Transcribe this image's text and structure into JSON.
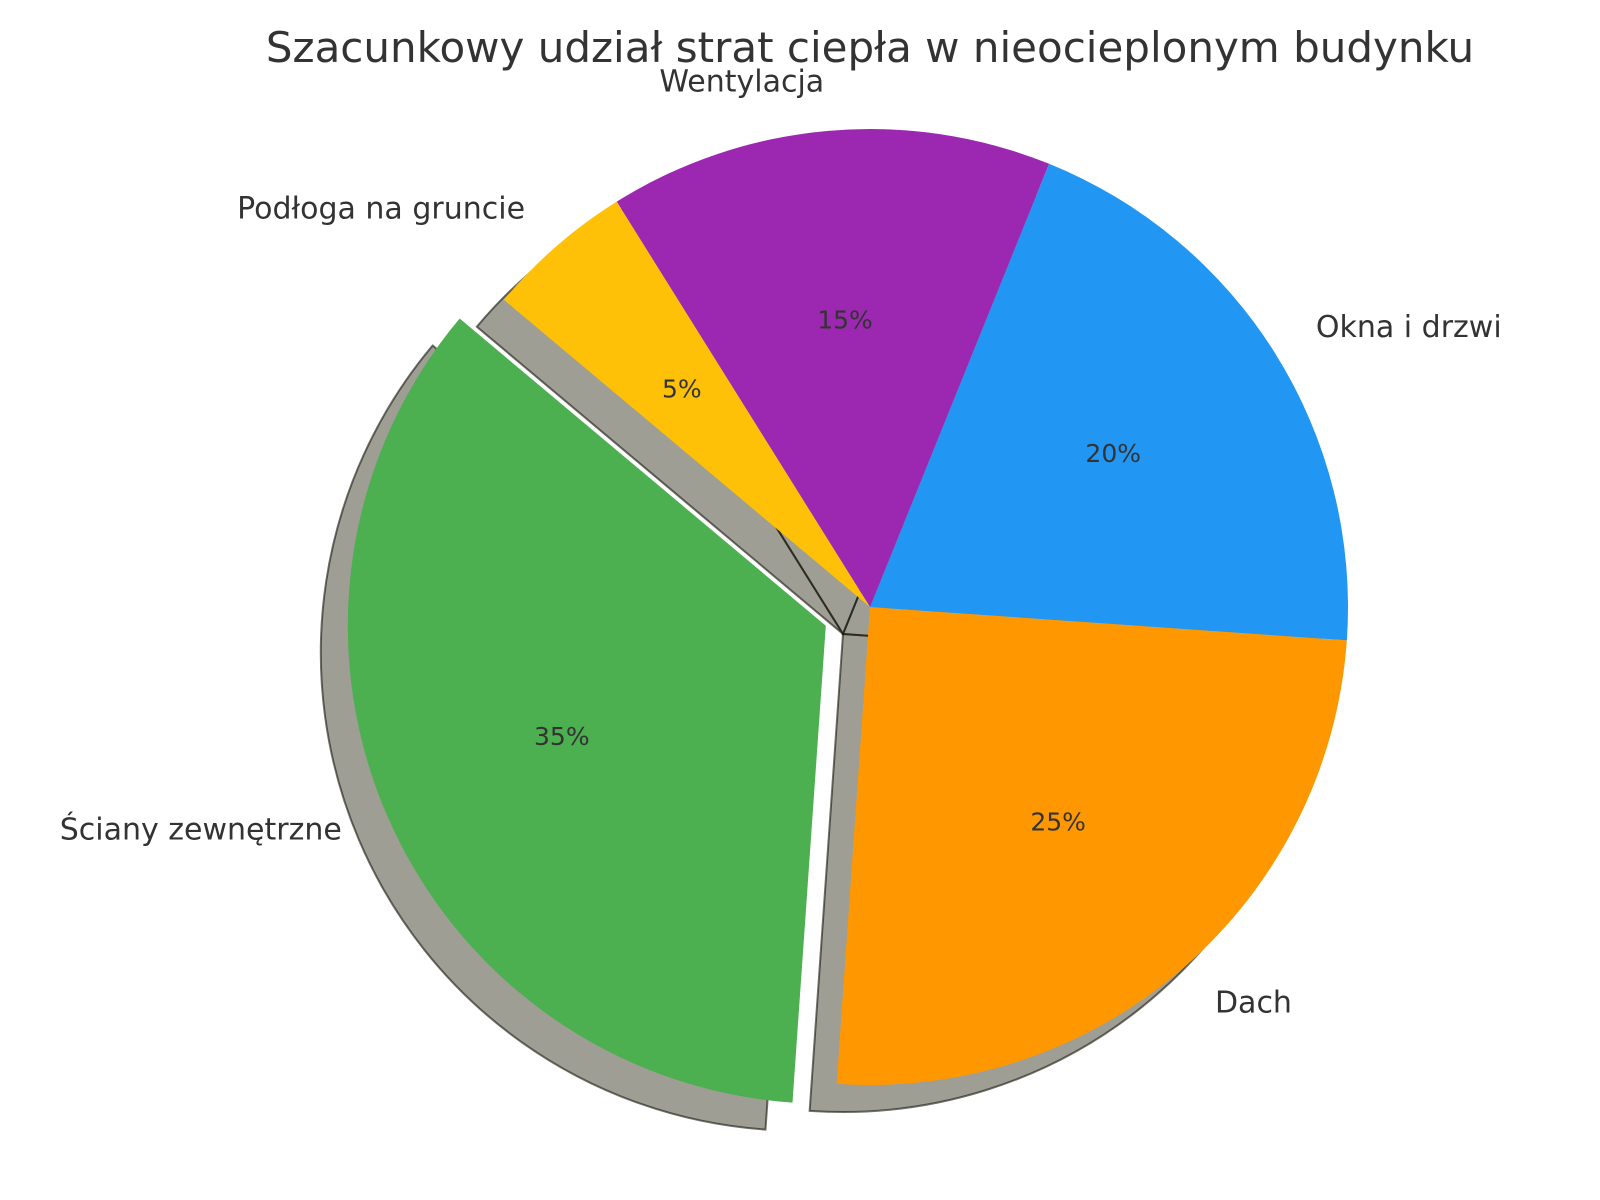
{
  "chart_data": {
    "type": "pie",
    "title": "Szacunkowy udział strat ciepła w nieocieplonym budynku",
    "slices": [
      {
        "label": "Ściany zewnętrzne",
        "value": 35,
        "pct_label": "35%",
        "color": "#4CAF50",
        "exploded": true
      },
      {
        "label": "Dach",
        "value": 25,
        "pct_label": "25%",
        "color": "#FF9800",
        "exploded": false
      },
      {
        "label": "Okna i drzwi",
        "value": 20,
        "pct_label": "20%",
        "color": "#2196F3",
        "exploded": false
      },
      {
        "label": "Wentylacja",
        "value": 15,
        "pct_label": "15%",
        "color": "#9C27B0",
        "exploded": false
      },
      {
        "label": "Podłoga na gruncie",
        "value": 5,
        "pct_label": "5%",
        "color": "#FFC107",
        "exploded": false
      }
    ],
    "start_angle_deg": 140,
    "direction": "counterclockwise",
    "shadow": true,
    "legend": "none"
  }
}
